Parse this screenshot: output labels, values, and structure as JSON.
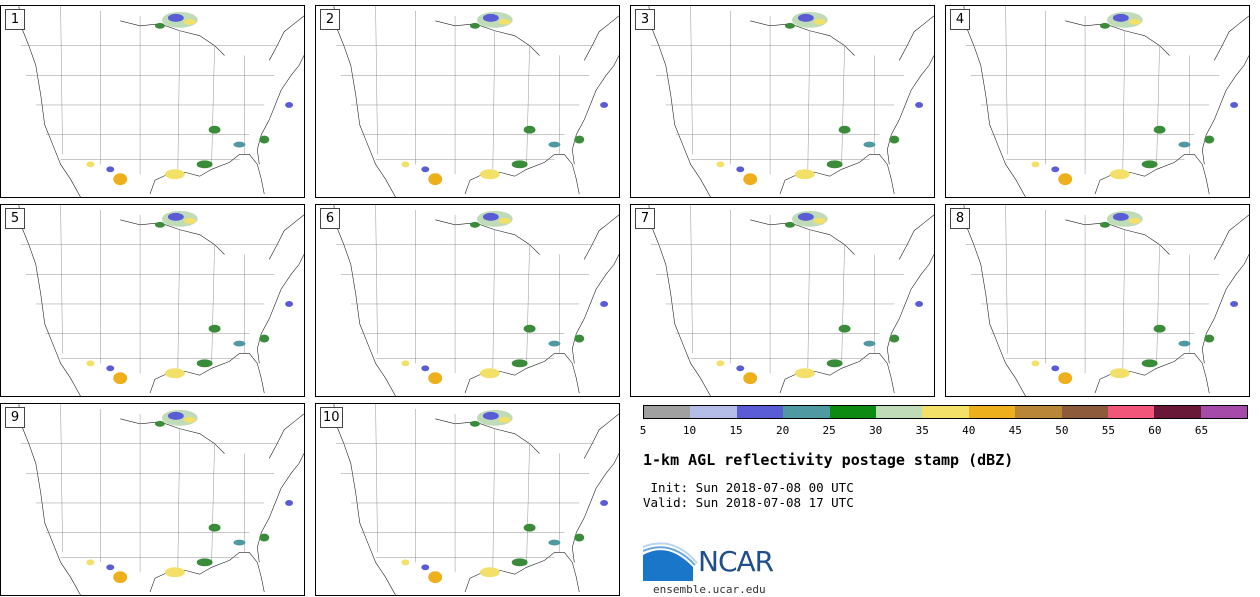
{
  "panels": [
    {
      "label": "1"
    },
    {
      "label": "2"
    },
    {
      "label": "3"
    },
    {
      "label": "4"
    },
    {
      "label": "5"
    },
    {
      "label": "6"
    },
    {
      "label": "7"
    },
    {
      "label": "8"
    },
    {
      "label": "9"
    },
    {
      "label": "10"
    }
  ],
  "colorbar": {
    "colors": [
      "#a0a0a0",
      "#b4bde8",
      "#5a5cd6",
      "#4f9aa0",
      "#0d8a12",
      "#bfdbb8",
      "#f2e068",
      "#eeaf1c",
      "#b98536",
      "#8d5a3c",
      "#f2557a",
      "#6a1838",
      "#a54aa8"
    ],
    "ticks": [
      "5",
      "10",
      "15",
      "20",
      "25",
      "30",
      "35",
      "40",
      "45",
      "50",
      "55",
      "60",
      "65"
    ]
  },
  "title": "1-km AGL reflectivity postage stamp (dBZ)",
  "init": " Init: Sun 2018-07-08 00 UTC",
  "valid": "Valid: Sun 2018-07-08 17 UTC",
  "logo": {
    "text": "NCAR",
    "url": "ensemble.ucar.edu"
  }
}
